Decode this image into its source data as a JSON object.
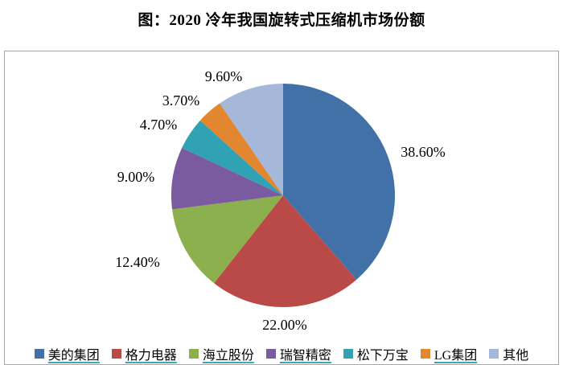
{
  "title": "图：2020 冷年我国旋转式压缩机市场份额",
  "chart_data": {
    "type": "pie",
    "title": "图：2020 冷年我国旋转式压缩机市场份额",
    "start_angle_deg": 0,
    "direction": "clockwise",
    "legend_position": "bottom",
    "label_color": "#000000",
    "legend_underline_color": "#3ba7bc",
    "plot_border_color": "#a6a6a6",
    "series": [
      {
        "name": "美的集团",
        "value": 38.6,
        "label": "38.60%",
        "color": "#4271a7",
        "legend_underlined": true
      },
      {
        "name": "格力电器",
        "value": 22.0,
        "label": "22.00%",
        "color": "#ba4a47",
        "legend_underlined": true
      },
      {
        "name": "海立股份",
        "value": 12.4,
        "label": "12.40%",
        "color": "#8cb04d",
        "legend_underlined": true
      },
      {
        "name": "瑞智精密",
        "value": 9.0,
        "label": "9.00%",
        "color": "#7a5ba0",
        "legend_underlined": true
      },
      {
        "name": "松下万宝",
        "value": 4.7,
        "label": "4.70%",
        "color": "#31a2b4",
        "legend_underlined": false
      },
      {
        "name": "LG集团",
        "value": 3.7,
        "label": "3.70%",
        "color": "#e2872f",
        "legend_underlined": true
      },
      {
        "name": "其他",
        "value": 9.6,
        "label": "9.60%",
        "color": "#a6b8da",
        "legend_underlined": false
      }
    ]
  }
}
